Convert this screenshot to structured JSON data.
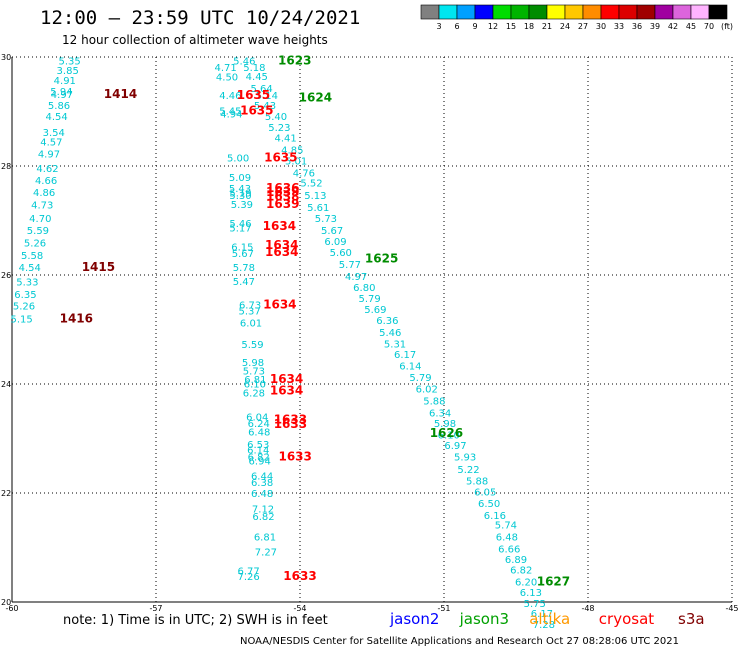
{
  "header": {
    "title": "12:00 – 23:59 UTC 10/24/2021",
    "subtitle": "12 hour collection of altimeter wave heights"
  },
  "colorbar": {
    "labels": [
      "3",
      "6",
      "9",
      "12",
      "15",
      "18",
      "21",
      "24",
      "27",
      "30",
      "33",
      "36",
      "39",
      "42",
      "45",
      "70",
      "(ft)"
    ],
    "colors": [
      "#808080",
      "#00e6f0",
      "#00a0ff",
      "#0000ff",
      "#00dc00",
      "#00b400",
      "#008c00",
      "#ffff00",
      "#ffc800",
      "#ff8c00",
      "#ff0000",
      "#dc0000",
      "#a00000",
      "#a000a0",
      "#dc64dc",
      "#ffb4ff",
      "#000000"
    ]
  },
  "footer": {
    "note": "note:  1) Time is in UTC;  2) SWH is in feet",
    "credit": "NOAA/NESDIS Center for Satellite Applications and Research     Oct 27 08:28:06 UTC 2021",
    "legend": [
      {
        "name": "jason2",
        "color": "#0000ff"
      },
      {
        "name": "jason3",
        "color": "#00a000"
      },
      {
        "name": "altika",
        "color": "#ff9900"
      },
      {
        "name": "cryosat",
        "color": "#ff0000"
      },
      {
        "name": "s3a",
        "color": "#800000"
      }
    ]
  },
  "chart_data": {
    "type": "scatter",
    "xlim": [
      -60,
      -45
    ],
    "ylim": [
      20,
      30
    ],
    "xticks": [
      "-60",
      "-57",
      "-54",
      "-51",
      "-48",
      "-45"
    ],
    "yticks": [
      "30",
      "28",
      "26",
      "24",
      "22",
      "20"
    ],
    "grid": true,
    "swh_points": [
      {
        "x": -58.8,
        "y": 29.94,
        "v": "5.35"
      },
      {
        "x": -58.84,
        "y": 29.76,
        "v": "3.85"
      },
      {
        "x": -58.9,
        "y": 29.58,
        "v": "4.91"
      },
      {
        "x": -58.97,
        "y": 29.38,
        "v": "5.94"
      },
      {
        "x": -58.96,
        "y": 29.32,
        "v": "4.97"
      },
      {
        "x": -59.02,
        "y": 29.12,
        "v": "5.86"
      },
      {
        "x": -59.07,
        "y": 28.92,
        "v": "4.54"
      },
      {
        "x": -59.13,
        "y": 28.62,
        "v": "3.54"
      },
      {
        "x": -59.18,
        "y": 28.45,
        "v": "4.57"
      },
      {
        "x": -59.23,
        "y": 28.23,
        "v": "4.97"
      },
      {
        "x": -59.26,
        "y": 27.96,
        "v": "4.62"
      },
      {
        "x": -59.29,
        "y": 27.74,
        "v": "4.66"
      },
      {
        "x": -59.33,
        "y": 27.52,
        "v": "4.86"
      },
      {
        "x": -59.37,
        "y": 27.29,
        "v": "4.73"
      },
      {
        "x": -59.41,
        "y": 27.05,
        "v": "4.70"
      },
      {
        "x": -59.46,
        "y": 26.83,
        "v": "5.59"
      },
      {
        "x": -59.52,
        "y": 26.6,
        "v": "5.26"
      },
      {
        "x": -59.58,
        "y": 26.37,
        "v": "5.58"
      },
      {
        "x": -59.63,
        "y": 26.15,
        "v": "4.54"
      },
      {
        "x": -59.68,
        "y": 25.88,
        "v": "5.33"
      },
      {
        "x": -59.72,
        "y": 25.65,
        "v": "6.35"
      },
      {
        "x": -59.75,
        "y": 25.44,
        "v": "5.26"
      },
      {
        "x": -59.8,
        "y": 25.2,
        "v": "5.15"
      },
      {
        "x": -55.55,
        "y": 29.82,
        "v": "4.71"
      },
      {
        "x": -55.52,
        "y": 29.64,
        "v": "4.50"
      },
      {
        "x": -55.16,
        "y": 29.94,
        "v": "5.46"
      },
      {
        "x": -54.95,
        "y": 29.82,
        "v": "5.18"
      },
      {
        "x": -54.9,
        "y": 29.65,
        "v": "4.45"
      },
      {
        "x": -54.8,
        "y": 29.43,
        "v": "5.64"
      },
      {
        "x": -54.69,
        "y": 29.3,
        "v": "5.14"
      },
      {
        "x": -54.73,
        "y": 29.12,
        "v": "5.43"
      },
      {
        "x": -54.5,
        "y": 28.92,
        "v": "5.40"
      },
      {
        "x": -54.43,
        "y": 28.72,
        "v": "5.23"
      },
      {
        "x": -54.3,
        "y": 28.52,
        "v": "4.41"
      },
      {
        "x": -54.16,
        "y": 28.3,
        "v": "4.85"
      },
      {
        "x": -54.08,
        "y": 28.1,
        "v": "5.01"
      },
      {
        "x": -53.92,
        "y": 27.88,
        "v": "4.76"
      },
      {
        "x": -53.76,
        "y": 27.7,
        "v": "5.52"
      },
      {
        "x": -53.68,
        "y": 27.47,
        "v": "5.13"
      },
      {
        "x": -53.62,
        "y": 27.25,
        "v": "5.61"
      },
      {
        "x": -53.46,
        "y": 27.05,
        "v": "5.73"
      },
      {
        "x": -53.33,
        "y": 26.83,
        "v": "5.67"
      },
      {
        "x": -53.26,
        "y": 26.62,
        "v": "6.09"
      },
      {
        "x": -53.15,
        "y": 26.42,
        "v": "5.60"
      },
      {
        "x": -52.96,
        "y": 26.2,
        "v": "5.77"
      },
      {
        "x": -52.83,
        "y": 25.98,
        "v": "4.97"
      },
      {
        "x": -52.66,
        "y": 25.78,
        "v": "6.80"
      },
      {
        "x": -52.55,
        "y": 25.58,
        "v": "5.79"
      },
      {
        "x": -52.43,
        "y": 25.38,
        "v": "5.69"
      },
      {
        "x": -52.18,
        "y": 25.17,
        "v": "6.36"
      },
      {
        "x": -52.12,
        "y": 24.95,
        "v": "5.46"
      },
      {
        "x": -52.02,
        "y": 24.74,
        "v": "5.31"
      },
      {
        "x": -51.81,
        "y": 24.55,
        "v": "6.17"
      },
      {
        "x": -51.7,
        "y": 24.34,
        "v": "6.14"
      },
      {
        "x": -51.49,
        "y": 24.13,
        "v": "5.79"
      },
      {
        "x": -51.36,
        "y": 23.92,
        "v": "6.02"
      },
      {
        "x": -51.2,
        "y": 23.7,
        "v": "5.88"
      },
      {
        "x": -51.08,
        "y": 23.48,
        "v": "6.34"
      },
      {
        "x": -50.98,
        "y": 23.28,
        "v": "5.98"
      },
      {
        "x": -50.9,
        "y": 23.07,
        "v": "6.10"
      },
      {
        "x": -50.76,
        "y": 22.88,
        "v": "6.97"
      },
      {
        "x": -50.56,
        "y": 22.67,
        "v": "5.93"
      },
      {
        "x": -50.49,
        "y": 22.44,
        "v": "5.22"
      },
      {
        "x": -50.31,
        "y": 22.23,
        "v": "5.88"
      },
      {
        "x": -50.14,
        "y": 22.03,
        "v": "6.05"
      },
      {
        "x": -50.06,
        "y": 21.82,
        "v": "6.50"
      },
      {
        "x": -49.94,
        "y": 21.6,
        "v": "6.16"
      },
      {
        "x": -49.71,
        "y": 21.42,
        "v": "5.74"
      },
      {
        "x": -49.69,
        "y": 21.2,
        "v": "6.48"
      },
      {
        "x": -49.64,
        "y": 20.98,
        "v": "6.66"
      },
      {
        "x": -49.5,
        "y": 20.79,
        "v": "6.89"
      },
      {
        "x": -49.39,
        "y": 20.6,
        "v": "6.82"
      },
      {
        "x": -49.29,
        "y": 20.38,
        "v": "6.20"
      },
      {
        "x": -49.19,
        "y": 20.18,
        "v": "6.13"
      },
      {
        "x": -49.11,
        "y": 19.98,
        "v": "5.75"
      },
      {
        "x": -48.96,
        "y": 19.8,
        "v": "6.17"
      },
      {
        "x": -48.92,
        "y": 19.6,
        "v": "7.28"
      },
      {
        "x": -55.45,
        "y": 29.3,
        "v": "4.46"
      },
      {
        "x": -55.45,
        "y": 29.02,
        "v": "5.45"
      },
      {
        "x": -55.43,
        "y": 28.96,
        "v": "4.94"
      },
      {
        "x": -55.29,
        "y": 28.16,
        "v": "5.00"
      },
      {
        "x": -55.25,
        "y": 27.8,
        "v": "5.09"
      },
      {
        "x": -55.25,
        "y": 27.6,
        "v": "5.43"
      },
      {
        "x": -55.24,
        "y": 27.51,
        "v": "5.19"
      },
      {
        "x": -55.24,
        "y": 27.47,
        "v": "5.30"
      },
      {
        "x": -55.21,
        "y": 27.3,
        "v": "5.39"
      },
      {
        "x": -55.24,
        "y": 26.95,
        "v": "5.46"
      },
      {
        "x": -55.24,
        "y": 26.87,
        "v": "5.17"
      },
      {
        "x": -55.2,
        "y": 26.52,
        "v": "6.15"
      },
      {
        "x": -55.19,
        "y": 26.4,
        "v": "5.67"
      },
      {
        "x": -55.17,
        "y": 26.15,
        "v": "5.78"
      },
      {
        "x": -55.17,
        "y": 25.89,
        "v": "5.47"
      },
      {
        "x": -55.04,
        "y": 25.46,
        "v": "6.73"
      },
      {
        "x": -55.05,
        "y": 25.35,
        "v": "5.37"
      },
      {
        "x": -55.02,
        "y": 25.13,
        "v": "6.01"
      },
      {
        "x": -54.99,
        "y": 24.73,
        "v": "5.59"
      },
      {
        "x": -54.98,
        "y": 24.4,
        "v": "5.98"
      },
      {
        "x": -54.96,
        "y": 24.25,
        "v": "5.73"
      },
      {
        "x": -54.93,
        "y": 24.09,
        "v": "6.81"
      },
      {
        "x": -54.94,
        "y": 24.01,
        "v": "6.10"
      },
      {
        "x": -54.96,
        "y": 23.84,
        "v": "6.28"
      },
      {
        "x": -54.89,
        "y": 23.4,
        "v": "6.04"
      },
      {
        "x": -54.86,
        "y": 23.28,
        "v": "6.24"
      },
      {
        "x": -54.85,
        "y": 23.13,
        "v": "6.48"
      },
      {
        "x": -54.87,
        "y": 22.9,
        "v": "6.53"
      },
      {
        "x": -54.87,
        "y": 22.8,
        "v": "6.14"
      },
      {
        "x": -54.86,
        "y": 22.67,
        "v": "6.82"
      },
      {
        "x": -54.84,
        "y": 22.6,
        "v": "6.94"
      },
      {
        "x": -54.79,
        "y": 22.32,
        "v": "6.44"
      },
      {
        "x": -54.79,
        "y": 22.2,
        "v": "6.38"
      },
      {
        "x": -54.79,
        "y": 22.0,
        "v": "6.48"
      },
      {
        "x": -54.77,
        "y": 21.72,
        "v": "7.12"
      },
      {
        "x": -54.76,
        "y": 21.58,
        "v": "6.82"
      },
      {
        "x": -54.73,
        "y": 21.2,
        "v": "6.81"
      },
      {
        "x": -54.71,
        "y": 20.93,
        "v": "7.27"
      },
      {
        "x": -55.07,
        "y": 20.58,
        "v": "6.77"
      },
      {
        "x": -55.07,
        "y": 20.48,
        "v": "7.26"
      }
    ],
    "pass_labels": [
      {
        "x": -54.11,
        "y": 29.94,
        "label": "1623",
        "sat": "jason3"
      },
      {
        "x": -53.68,
        "y": 29.26,
        "label": "1624",
        "sat": "jason3"
      },
      {
        "x": -52.3,
        "y": 26.3,
        "label": "1625",
        "sat": "jason3"
      },
      {
        "x": -50.95,
        "y": 23.1,
        "label": "1626",
        "sat": "jason3"
      },
      {
        "x": -48.72,
        "y": 20.38,
        "label": "1627",
        "sat": "jason3"
      },
      {
        "x": -57.74,
        "y": 29.32,
        "label": "1414",
        "sat": "s3a"
      },
      {
        "x": -58.2,
        "y": 26.15,
        "label": "1415",
        "sat": "s3a"
      },
      {
        "x": -58.66,
        "y": 25.2,
        "label": "1416",
        "sat": "s3a"
      },
      {
        "x": -54.97,
        "y": 29.3,
        "label": "1635",
        "sat": "cryosat"
      },
      {
        "x": -54.9,
        "y": 29.02,
        "label": "1635",
        "sat": "cryosat"
      },
      {
        "x": -54.4,
        "y": 28.16,
        "label": "1635",
        "sat": "cryosat"
      },
      {
        "x": -54.36,
        "y": 27.6,
        "label": "1636",
        "sat": "cryosat"
      },
      {
        "x": -54.36,
        "y": 27.52,
        "label": "1639",
        "sat": "cryosat"
      },
      {
        "x": -54.36,
        "y": 27.44,
        "label": "1638",
        "sat": "cryosat"
      },
      {
        "x": -54.36,
        "y": 27.3,
        "label": "1639",
        "sat": "cryosat"
      },
      {
        "x": -54.43,
        "y": 26.9,
        "label": "1634",
        "sat": "cryosat"
      },
      {
        "x": -54.38,
        "y": 26.55,
        "label": "1634",
        "sat": "cryosat"
      },
      {
        "x": -54.38,
        "y": 26.42,
        "label": "1634",
        "sat": "cryosat"
      },
      {
        "x": -54.42,
        "y": 25.46,
        "label": "1634",
        "sat": "cryosat"
      },
      {
        "x": -54.28,
        "y": 24.09,
        "label": "1634",
        "sat": "cryosat"
      },
      {
        "x": -54.28,
        "y": 23.88,
        "label": "1634",
        "sat": "cryosat"
      },
      {
        "x": -54.2,
        "y": 23.35,
        "label": "1633",
        "sat": "cryosat"
      },
      {
        "x": -54.2,
        "y": 23.27,
        "label": "1633",
        "sat": "cryosat"
      },
      {
        "x": -54.1,
        "y": 22.67,
        "label": "1633",
        "sat": "cryosat"
      },
      {
        "x": -54.0,
        "y": 20.48,
        "label": "1633",
        "sat": "cryosat"
      }
    ],
    "sat_colors": {
      "jason3": "#008c00",
      "s3a": "#800000",
      "cryosat": "#ff0000"
    }
  }
}
